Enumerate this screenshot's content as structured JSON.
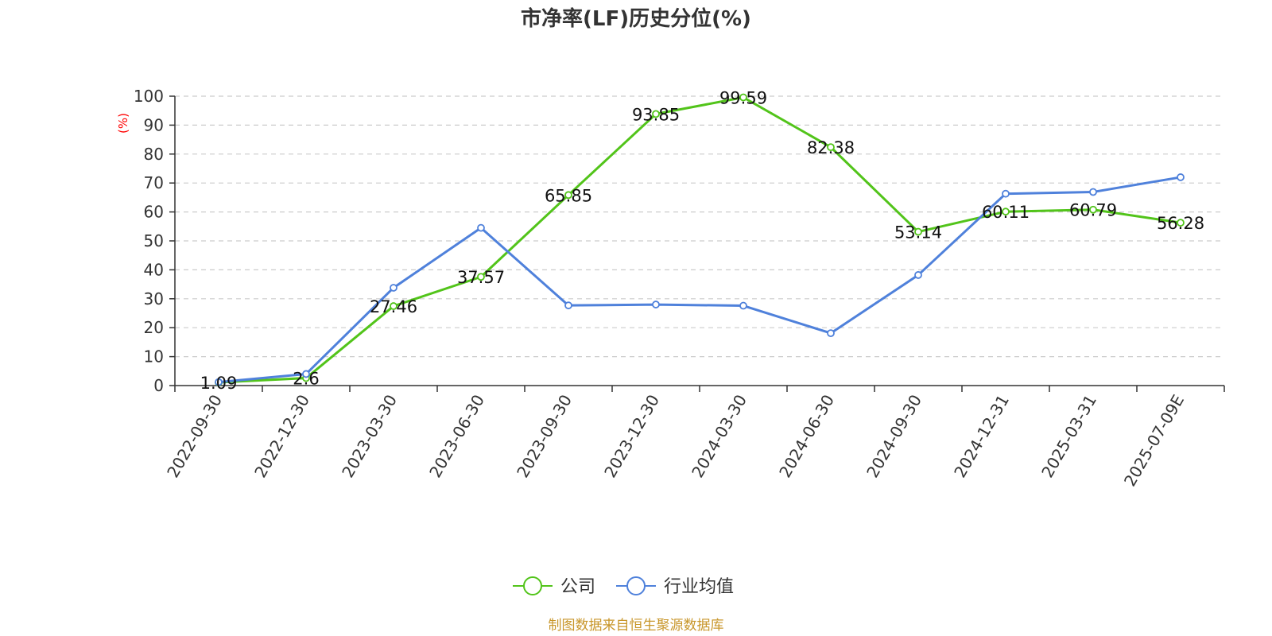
{
  "title": "市净率(LF)历史分位(%)",
  "source": "制图数据来自恒生聚源数据库",
  "colors": {
    "company": "#52c41a",
    "industry": "#4f81db",
    "grid": "#cccccc",
    "axis": "#333333"
  },
  "chart_data": {
    "type": "line",
    "title": "市净率(LF)历史分位(%)",
    "ylabel": "(%)",
    "ylim": [
      0,
      100
    ],
    "yticks": [
      0,
      10,
      20,
      30,
      40,
      50,
      60,
      70,
      80,
      90,
      100
    ],
    "grid": true,
    "legend_position": "bottom-center",
    "categories": [
      "2022-09-30",
      "2022-12-30",
      "2023-03-30",
      "2023-06-30",
      "2023-09-30",
      "2023-12-30",
      "2024-03-30",
      "2024-06-30",
      "2024-09-30",
      "2024-12-31",
      "2025-03-31",
      "2025-07-09E"
    ],
    "series": [
      {
        "name": "公司",
        "color": "#52c41a",
        "show_labels": true,
        "values": [
          1.09,
          2.6,
          27.46,
          37.57,
          65.85,
          93.85,
          99.59,
          82.38,
          53.14,
          60.11,
          60.79,
          56.28
        ]
      },
      {
        "name": "行业均值",
        "color": "#4f81db",
        "show_labels": false,
        "values": [
          1.2,
          4.0,
          33.8,
          54.5,
          27.7,
          28.0,
          27.6,
          18.1,
          38.2,
          66.3,
          66.9,
          72.0
        ]
      }
    ]
  }
}
